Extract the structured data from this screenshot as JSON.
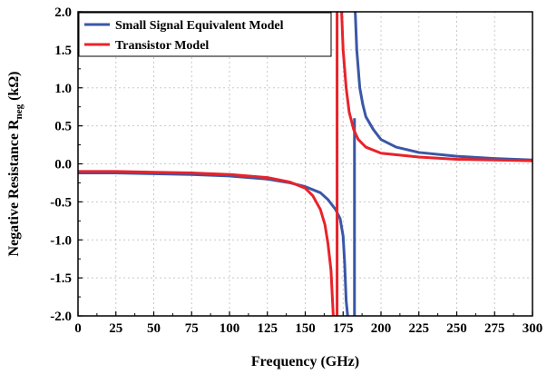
{
  "chart_data": {
    "type": "line",
    "title": "",
    "xlabel": "Frequency (GHz)",
    "ylabel": {
      "main": "Negative Resistance R",
      "sub": "neg",
      "unit": " (kΩ)"
    },
    "xlim": [
      0,
      300
    ],
    "ylim": [
      -2.0,
      2.0
    ],
    "xticks": [
      "0",
      "25",
      "50",
      "75",
      "100",
      "125",
      "150",
      "175",
      "200",
      "225",
      "250",
      "275",
      "300"
    ],
    "yticks": [
      "2.0",
      "1.5",
      "1.0",
      "0.5",
      "0.0",
      "-0.5",
      "-1.0",
      "-1.5",
      "-2.0"
    ],
    "grid": true,
    "legend_position": "top-left",
    "series": [
      {
        "name": "Small Signal Equivalent Model",
        "color": "#3a57a6",
        "segments": [
          [
            [
              0,
              -0.12
            ],
            [
              25,
              -0.12
            ],
            [
              50,
              -0.13
            ],
            [
              75,
              -0.14
            ],
            [
              100,
              -0.16
            ],
            [
              125,
              -0.2
            ],
            [
              140,
              -0.25
            ],
            [
              150,
              -0.3
            ],
            [
              160,
              -0.38
            ],
            [
              165,
              -0.47
            ],
            [
              170,
              -0.6
            ],
            [
              173,
              -0.72
            ],
            [
              175,
              -0.95
            ],
            [
              176,
              -1.3
            ],
            [
              177,
              -1.8
            ],
            [
              178,
              -2.0
            ]
          ],
          [
            [
              182.5,
              -2.0
            ],
            [
              182.5,
              0.6
            ]
          ],
          [
            [
              183,
              2.0
            ],
            [
              184,
              1.5
            ],
            [
              186,
              1.0
            ],
            [
              188,
              0.78
            ],
            [
              190,
              0.62
            ],
            [
              195,
              0.45
            ],
            [
              200,
              0.32
            ],
            [
              210,
              0.22
            ],
            [
              225,
              0.15
            ],
            [
              250,
              0.1
            ],
            [
              275,
              0.07
            ],
            [
              300,
              0.05
            ]
          ]
        ]
      },
      {
        "name": "Transistor Model",
        "color": "#e8232a",
        "segments": [
          [
            [
              0,
              -0.1
            ],
            [
              25,
              -0.1
            ],
            [
              50,
              -0.11
            ],
            [
              75,
              -0.12
            ],
            [
              100,
              -0.14
            ],
            [
              125,
              -0.18
            ],
            [
              140,
              -0.24
            ],
            [
              150,
              -0.32
            ],
            [
              155,
              -0.42
            ],
            [
              160,
              -0.6
            ],
            [
              163,
              -0.8
            ],
            [
              165,
              -1.05
            ],
            [
              167,
              -1.4
            ],
            [
              168,
              -1.8
            ],
            [
              168.5,
              -2.0
            ]
          ],
          [
            [
              171,
              -2.0
            ],
            [
              171,
              2.0
            ]
          ],
          [
            [
              174,
              2.0
            ],
            [
              175,
              1.5
            ],
            [
              177,
              1.0
            ],
            [
              179,
              0.68
            ],
            [
              182,
              0.45
            ],
            [
              185,
              0.32
            ],
            [
              190,
              0.22
            ],
            [
              200,
              0.14
            ],
            [
              225,
              0.09
            ],
            [
              250,
              0.06
            ],
            [
              275,
              0.05
            ],
            [
              300,
              0.04
            ]
          ]
        ]
      }
    ]
  }
}
